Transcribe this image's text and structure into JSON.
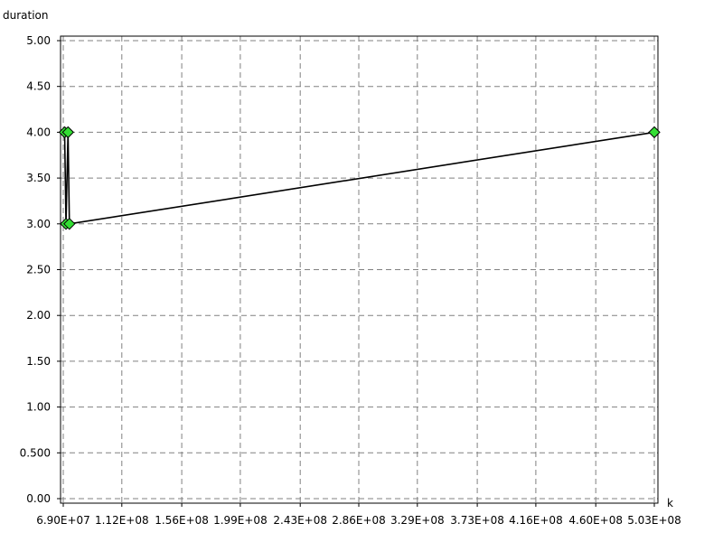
{
  "chart_data": {
    "type": "line",
    "title": "",
    "xlabel": "k",
    "ylabel": "duration",
    "grid": true,
    "xlim": [
      69000000,
      503000000
    ],
    "ylim": [
      0,
      5
    ],
    "x_ticks": [
      {
        "value": 69000000,
        "label": "6.90E+07"
      },
      {
        "value": 112000000,
        "label": "1.12E+08"
      },
      {
        "value": 156000000,
        "label": "1.56E+08"
      },
      {
        "value": 199000000,
        "label": "1.99E+08"
      },
      {
        "value": 243000000,
        "label": "2.43E+08"
      },
      {
        "value": 286000000,
        "label": "2.86E+08"
      },
      {
        "value": 329000000,
        "label": "3.29E+08"
      },
      {
        "value": 373000000,
        "label": "3.73E+08"
      },
      {
        "value": 416000000,
        "label": "4.16E+08"
      },
      {
        "value": 460000000,
        "label": "4.60E+08"
      },
      {
        "value": 503000000,
        "label": "5.03E+08"
      }
    ],
    "y_ticks": [
      {
        "value": 0.0,
        "label": "0.00"
      },
      {
        "value": 0.5,
        "label": "0.500"
      },
      {
        "value": 1.0,
        "label": "1.00"
      },
      {
        "value": 1.5,
        "label": "1.50"
      },
      {
        "value": 2.0,
        "label": "2.00"
      },
      {
        "value": 2.5,
        "label": "2.50"
      },
      {
        "value": 3.0,
        "label": "3.00"
      },
      {
        "value": 3.5,
        "label": "3.50"
      },
      {
        "value": 4.0,
        "label": "4.00"
      },
      {
        "value": 4.5,
        "label": "4.50"
      },
      {
        "value": 5.0,
        "label": "5.00"
      }
    ],
    "series": [
      {
        "line_color": "#000000",
        "marker_color": "#33dd33",
        "marker": "diamond",
        "points": [
          {
            "x": 70000000,
            "y": 4
          },
          {
            "x": 71000000,
            "y": 3
          },
          {
            "x": 72500000,
            "y": 4
          },
          {
            "x": 73500000,
            "y": 3
          },
          {
            "x": 503000000,
            "y": 4
          }
        ]
      }
    ]
  }
}
